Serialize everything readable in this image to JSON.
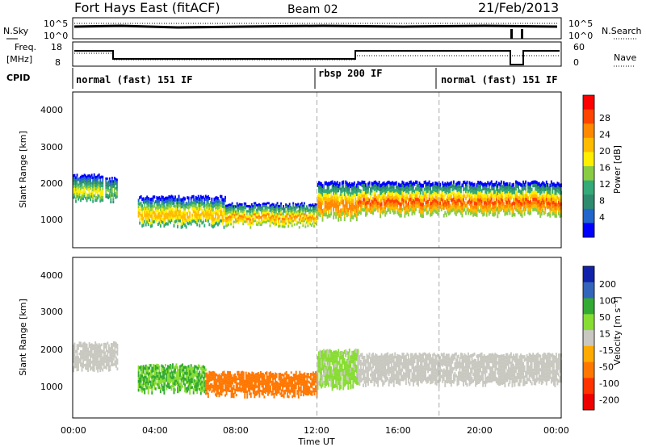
{
  "header": {
    "station": "Fort Hays East (fitACF)",
    "beam": "Beam 02",
    "date": "21/Feb/2013"
  },
  "panels": {
    "nsky_label": "N.Sky",
    "nsky_ticks": [
      "10^5",
      "10^0"
    ],
    "nsearch_label": "N.Search",
    "nsearch_ticks": [
      "10^5",
      "10^0"
    ],
    "freq_label_1": "Freq.",
    "freq_label_2": "[MHz]",
    "freq_ticks": [
      "18",
      "8"
    ],
    "nave_label": "Nave",
    "nave_ticks": [
      "60",
      "0"
    ],
    "cpid_label": "CPID",
    "cpid_modes": [
      "normal (fast) 151 IF",
      "rbsp 200 IF",
      "normal (fast) 151 IF"
    ]
  },
  "axes": {
    "ylabel": "Slant Range [km]",
    "xlabel": "Time UT",
    "yticks": [
      "1000",
      "2000",
      "3000",
      "4000"
    ],
    "xticks": [
      "00:00",
      "04:00",
      "08:00",
      "12:00",
      "16:00",
      "20:00",
      "00:00"
    ]
  },
  "power_colorbar": {
    "label": "Power [dB]",
    "ticks": [
      "28",
      "24",
      "20",
      "16",
      "12",
      "8",
      "4"
    ],
    "colors": [
      "#ff0000",
      "#ff4400",
      "#ff8800",
      "#ffbb00",
      "#ffee00",
      "#88cc44",
      "#33aa77",
      "#2e8b6e",
      "#2266cc",
      "#0000ff"
    ]
  },
  "velocity_colorbar": {
    "label": "Velocity [m s⁻¹]",
    "ticks": [
      "200",
      "100",
      "50",
      "15",
      "-15",
      "-50",
      "-100",
      "-200"
    ],
    "colors": [
      "#1122aa",
      "#3366bb",
      "#33aa33",
      "#88dd33",
      "#c8c8c0",
      "#ffaa00",
      "#ff7700",
      "#ff3300",
      "#ee0000"
    ]
  },
  "chart_data": [
    {
      "type": "heatmap",
      "title": "Power [dB]",
      "xlabel": "Time UT",
      "ylabel": "Slant Range [km]",
      "xlim": [
        0,
        24
      ],
      "ylim": [
        180,
        4500
      ],
      "bands": [
        {
          "t0": 0.0,
          "t1": 1.5,
          "r_low": 1500,
          "r_high": 2200,
          "peak": 18
        },
        {
          "t0": 1.6,
          "t1": 2.2,
          "r_low": 1500,
          "r_high": 2100,
          "peak": 14
        },
        {
          "t0": 3.2,
          "t1": 7.5,
          "r_low": 800,
          "r_high": 1600,
          "peak": 22
        },
        {
          "t0": 7.5,
          "t1": 12.0,
          "r_low": 800,
          "r_high": 1400,
          "peak": 24
        },
        {
          "t0": 12.0,
          "t1": 14.0,
          "r_low": 1000,
          "r_high": 2000,
          "peak": 26
        },
        {
          "t0": 14.0,
          "t1": 24.0,
          "r_low": 1100,
          "r_high": 2000,
          "peak": 28
        }
      ]
    },
    {
      "type": "heatmap",
      "title": "Velocity [m s⁻¹]",
      "xlabel": "Time UT",
      "ylabel": "Slant Range [km]",
      "xlim": [
        0,
        24
      ],
      "ylim": [
        180,
        4500
      ],
      "bands": [
        {
          "t0": 0.0,
          "t1": 2.2,
          "r_low": 1500,
          "r_high": 2200,
          "velocity": 0
        },
        {
          "t0": 3.2,
          "t1": 6.5,
          "r_low": 900,
          "r_high": 1600,
          "velocity": 30
        },
        {
          "t0": 6.5,
          "t1": 12.0,
          "r_low": 800,
          "r_high": 1400,
          "velocity": -40
        },
        {
          "t0": 12.0,
          "t1": 14.0,
          "r_low": 1000,
          "r_high": 2000,
          "velocity": 20
        },
        {
          "t0": 14.0,
          "t1": 24.0,
          "r_low": 1100,
          "r_high": 1900,
          "velocity": 0
        }
      ]
    }
  ]
}
